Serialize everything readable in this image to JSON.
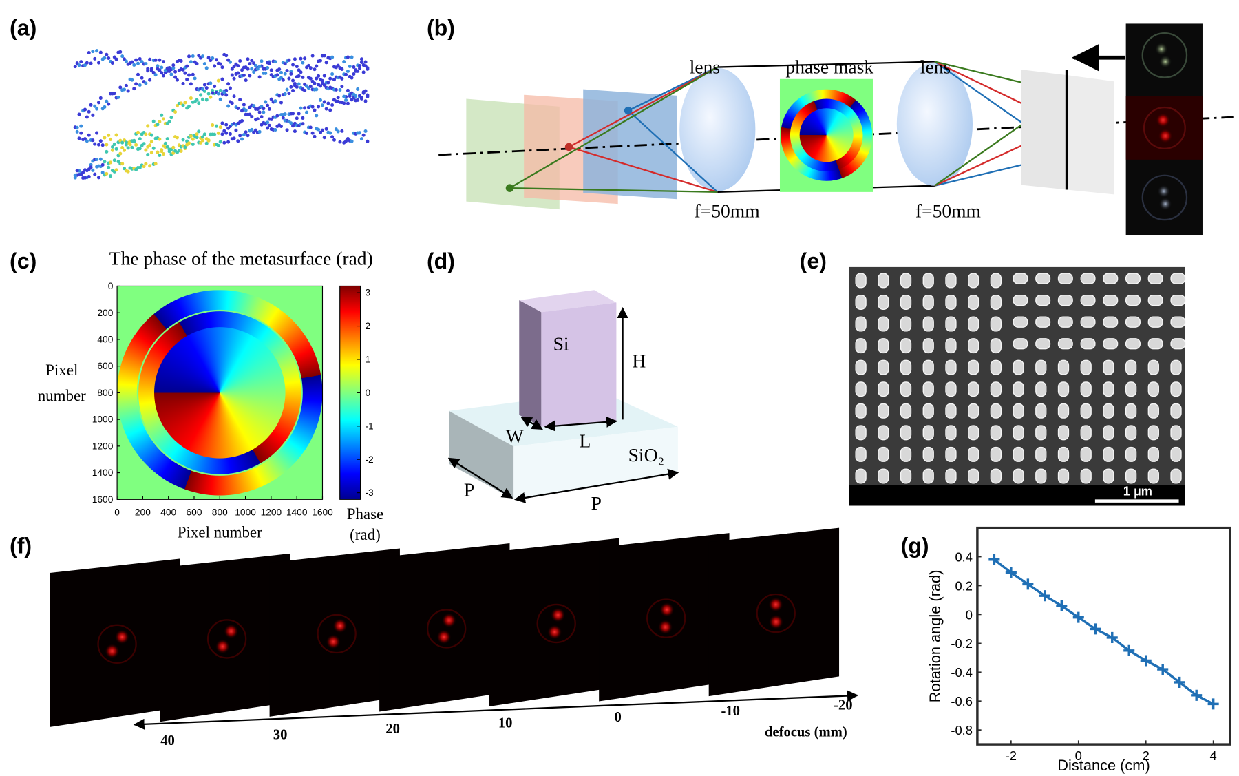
{
  "panel_labels": [
    "(a)",
    "(b)",
    "(c)",
    "(d)",
    "(e)",
    "(f)",
    "(g)"
  ],
  "b": {
    "lens_labels": [
      "lens",
      "lens"
    ],
    "phase_mask": "phase mask",
    "focal_lengths": [
      "f=50mm",
      "f=50mm"
    ]
  },
  "c": {
    "title": "The phase of the metasurface (rad)",
    "xlabel": "Pixel number",
    "ylabel": [
      "Pixel",
      "number"
    ],
    "colorbar_label": [
      "Phase",
      "(rad)"
    ],
    "xlim": [
      0,
      1600
    ],
    "ylim": [
      0,
      1600
    ],
    "xticks": [
      0,
      200,
      400,
      600,
      800,
      1000,
      1200,
      1400,
      1600
    ],
    "yticks": [
      0,
      200,
      400,
      600,
      800,
      1000,
      1200,
      1400,
      1600
    ],
    "clim": [
      -3.2,
      3.2
    ],
    "cticks": [
      3,
      2,
      1,
      0,
      -1,
      -2,
      -3
    ]
  },
  "d": {
    "si": "Si",
    "h": "H",
    "w": "W",
    "l": "L",
    "sio2": "SiO₂",
    "p": [
      "P",
      "P"
    ]
  },
  "e": {
    "scale_bar": "1 µm"
  },
  "f": {
    "ticks": [
      40,
      30,
      20,
      10,
      0,
      -10,
      -20
    ],
    "axis_label": "defocus (mm)"
  },
  "chart_data": {
    "type": "line",
    "xlabel": "Distance (cm)",
    "ylabel": "Rotation angle (rad)",
    "x": [
      -2.5,
      -2,
      -1.5,
      -1,
      -0.5,
      0,
      0.5,
      1,
      1.5,
      2,
      2.5,
      3,
      3.5,
      4
    ],
    "series": [
      {
        "color": "#1f6fb5",
        "values": [
          0.38,
          0.29,
          0.21,
          0.13,
          0.06,
          -0.02,
          -0.1,
          -0.16,
          -0.25,
          -0.32,
          -0.38,
          -0.47,
          -0.56,
          -0.62
        ]
      }
    ],
    "xlim": [
      -3,
      4.5
    ],
    "ylim": [
      -0.9,
      0.6
    ],
    "xticks": [
      -2,
      0,
      2,
      4
    ],
    "yticks": [
      0.4,
      0.2,
      0,
      -0.2,
      -0.4,
      -0.6,
      -0.8
    ]
  }
}
